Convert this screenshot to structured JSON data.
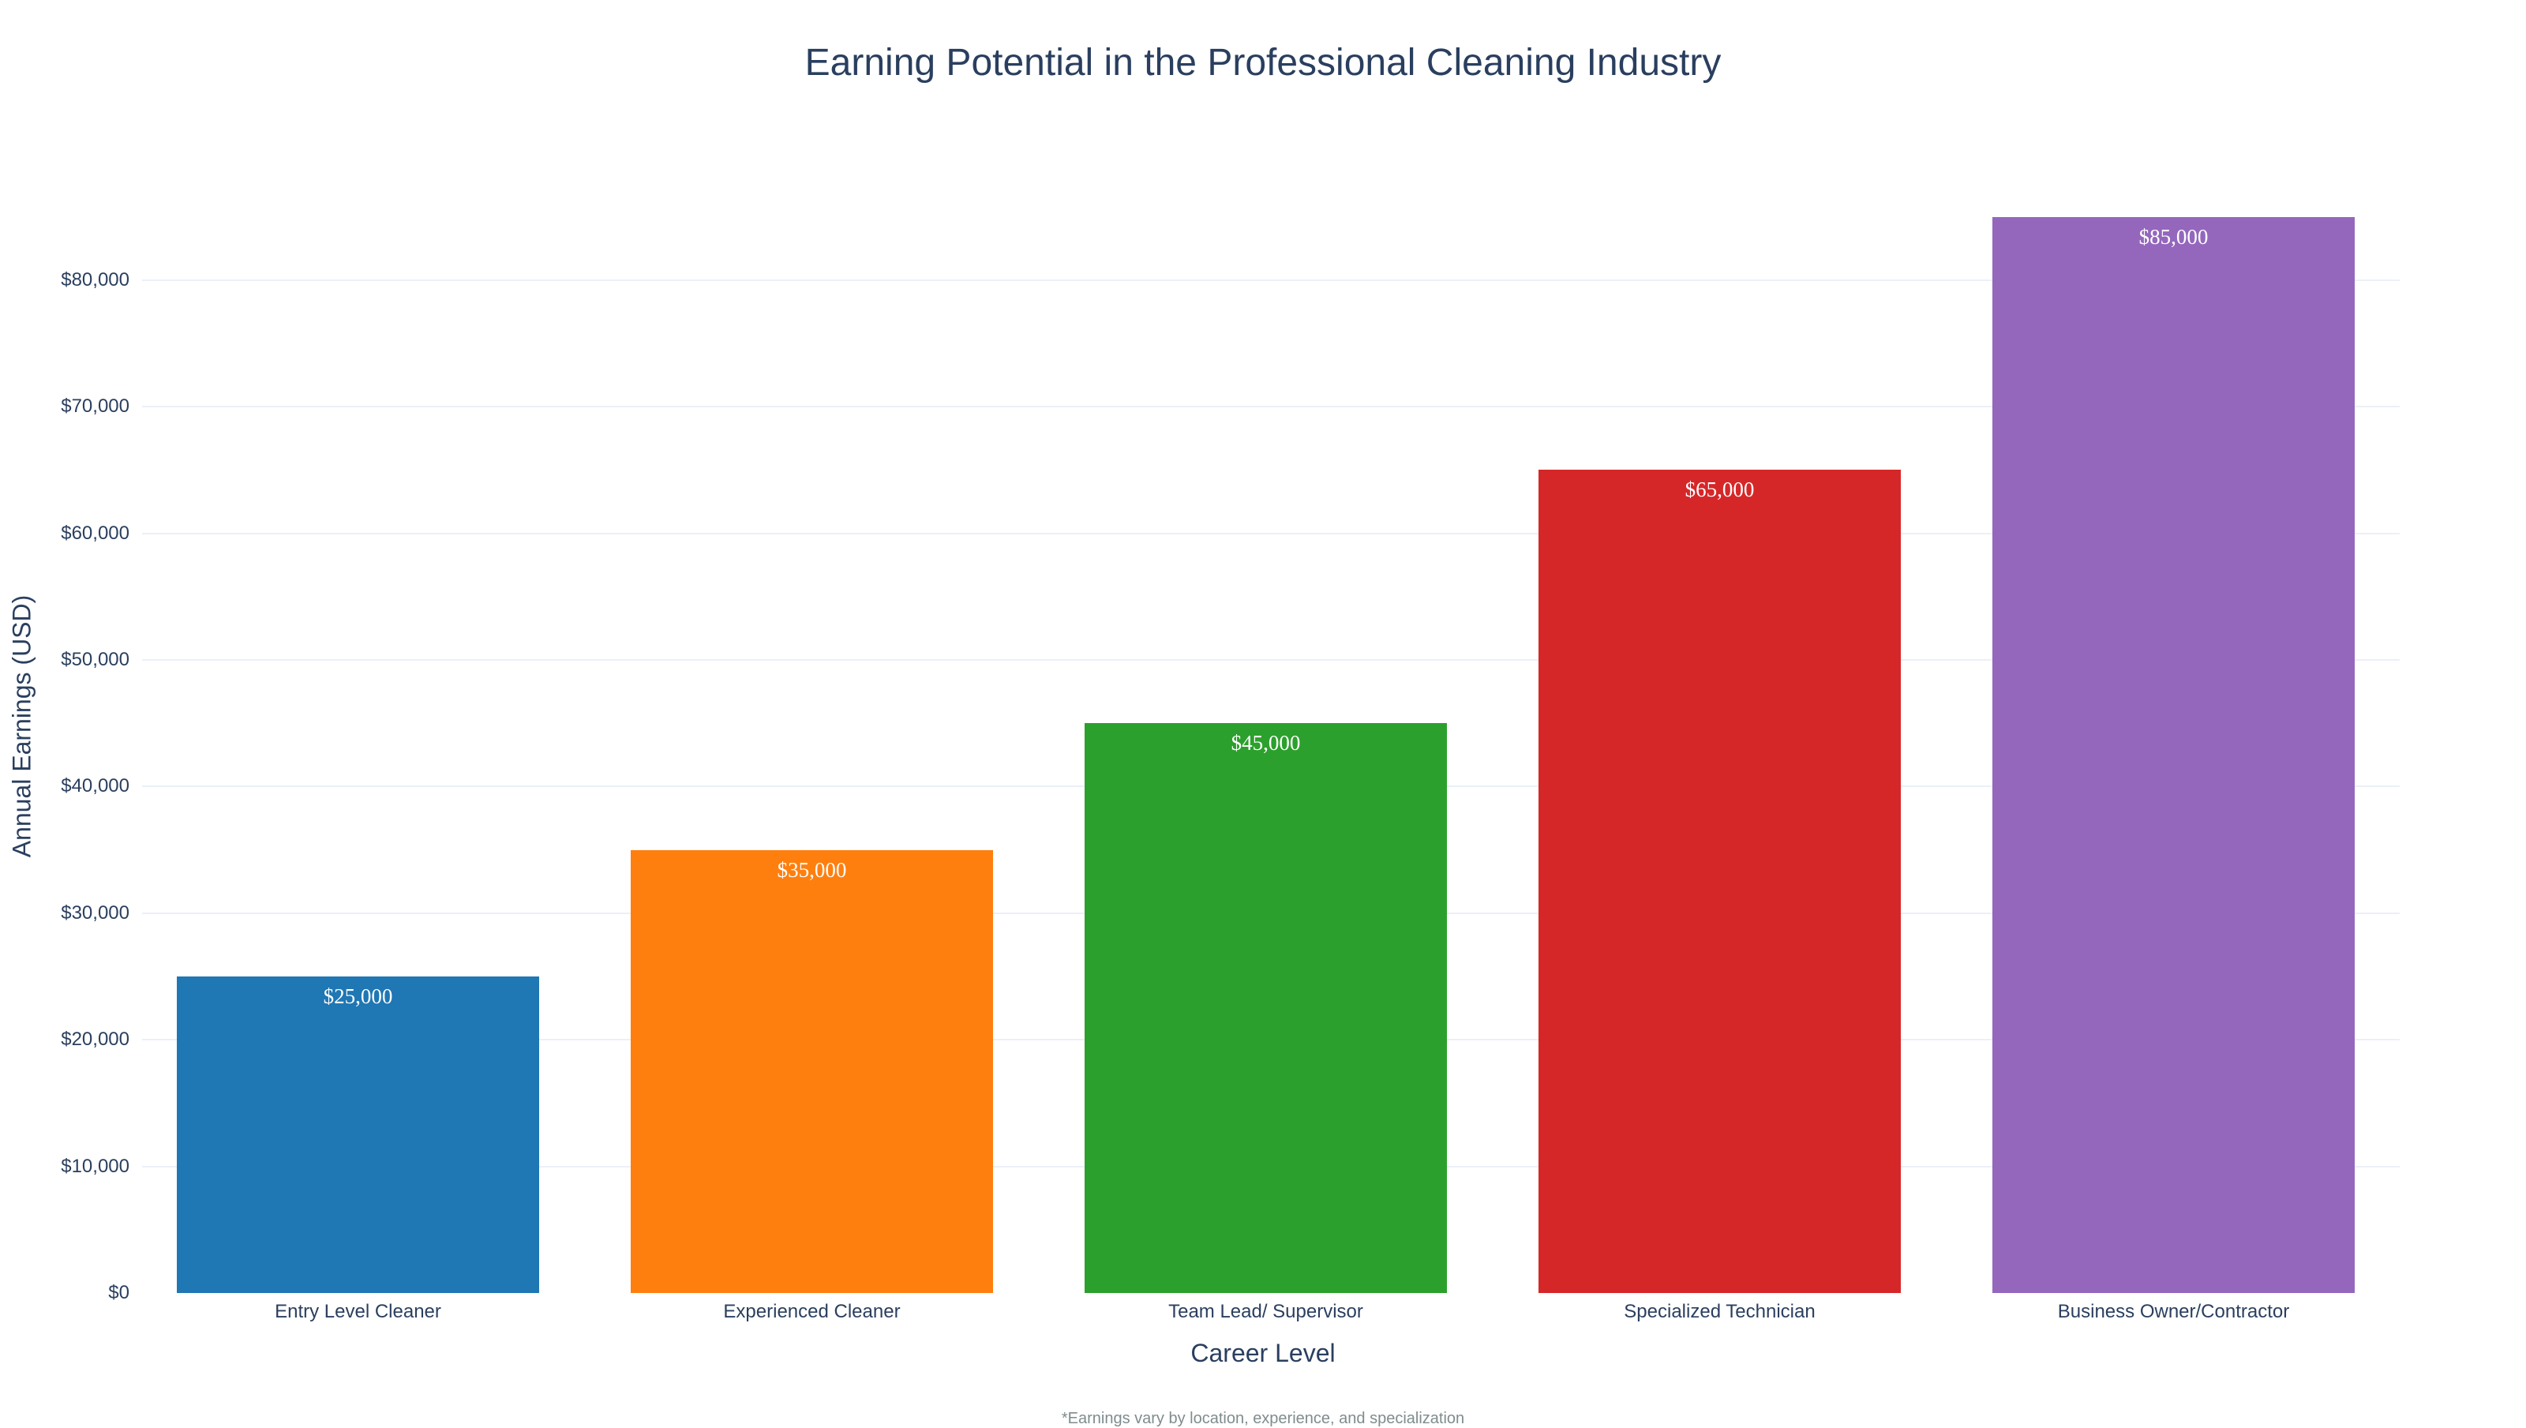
{
  "chart_data": {
    "type": "bar",
    "title": "Earning Potential in the Professional Cleaning Industry",
    "xlabel": "Career Level",
    "ylabel": "Annual Earnings (USD)",
    "categories": [
      "Entry Level Cleaner",
      "Experienced Cleaner",
      "Team Lead/ Supervisor",
      "Specialized Technician",
      "Business Owner/Contractor"
    ],
    "values": [
      25000,
      35000,
      45000,
      65000,
      85000
    ],
    "data_labels": [
      "$25,000",
      "$35,000",
      "$45,000",
      "$65,000",
      "$85,000"
    ],
    "colors": [
      "#1f77b4",
      "#ff7f0e",
      "#2ca02c",
      "#d62728",
      "#9467bd"
    ],
    "yticks": [
      "$0",
      "$10,000",
      "$20,000",
      "$30,000",
      "$40,000",
      "$50,000",
      "$60,000",
      "$70,000",
      "$80,000"
    ],
    "ylim": [
      0,
      89000
    ],
    "grid": true,
    "legend": false,
    "annotation": "*Earnings vary by location, experience, and specialization"
  }
}
